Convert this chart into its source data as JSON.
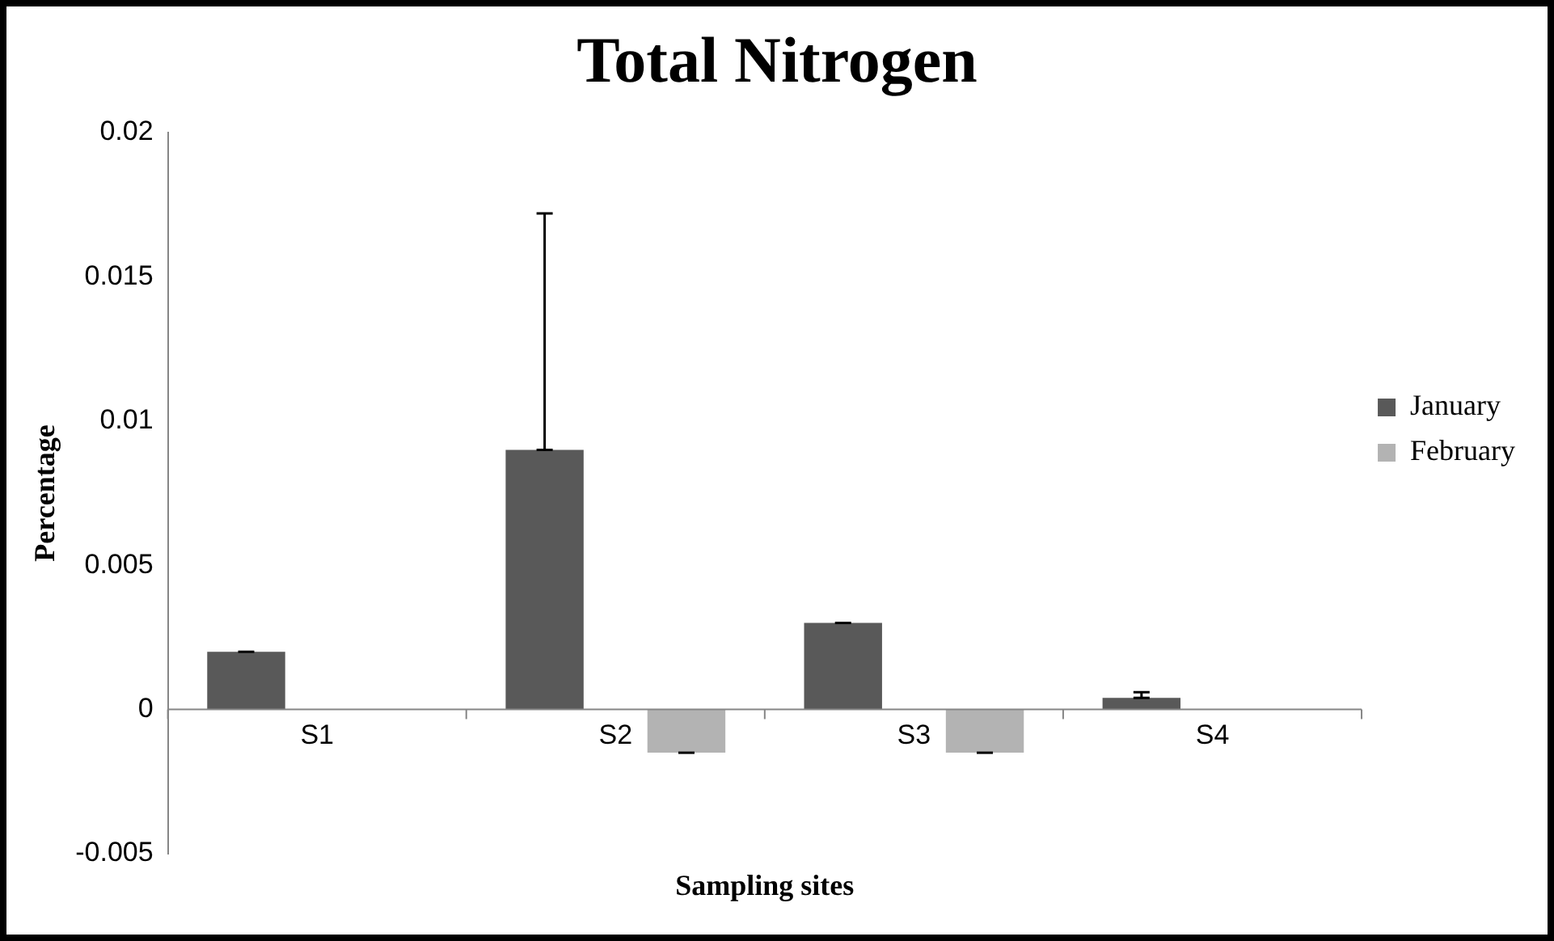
{
  "chart_data": {
    "type": "bar",
    "title": "Total Nitrogen",
    "xlabel": "Sampling sites",
    "ylabel": "Percentage",
    "categories": [
      "S1",
      "S2",
      "S3",
      "S4"
    ],
    "series": [
      {
        "name": "January",
        "color": "#595959",
        "values": [
          0.002,
          0.009,
          0.003,
          0.0004
        ],
        "errors": [
          0,
          [
            0.009,
            0.0172
          ],
          0,
          [
            0.0004,
            0.0006
          ]
        ]
      },
      {
        "name": "February",
        "color": "#b3b3b3",
        "values": [
          0,
          -0.0015,
          -0.0015,
          0
        ],
        "errors": [
          null,
          0,
          0,
          null
        ]
      }
    ],
    "ylim": [
      -0.005,
      0.02
    ],
    "yticks": [
      -0.005,
      0,
      0.005,
      0.01,
      0.015,
      0.02
    ],
    "grid": false,
    "legend": "right"
  }
}
